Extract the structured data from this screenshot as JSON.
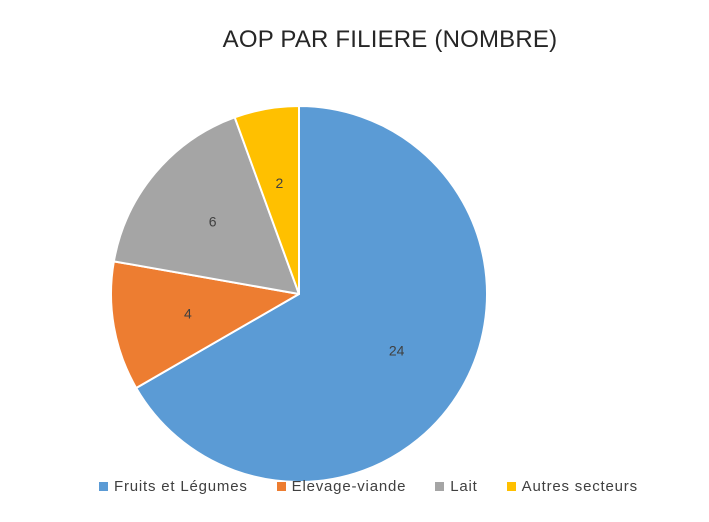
{
  "chart_data": {
    "type": "pie",
    "title": "AOP PAR FILIERE (NOMBRE)",
    "categories": [
      "Fruits et Légumes",
      "Elevage-viande",
      "Lait",
      "Autres secteurs"
    ],
    "values": [
      24,
      4,
      6,
      2
    ],
    "colors": [
      "#5B9BD5",
      "#ED7D31",
      "#A5A5A5",
      "#FFC000"
    ],
    "data_labels": [
      "24",
      "4",
      "6",
      "2"
    ],
    "legend_position": "bottom",
    "start_angle": "12 o'clock",
    "direction": "clockwise"
  }
}
